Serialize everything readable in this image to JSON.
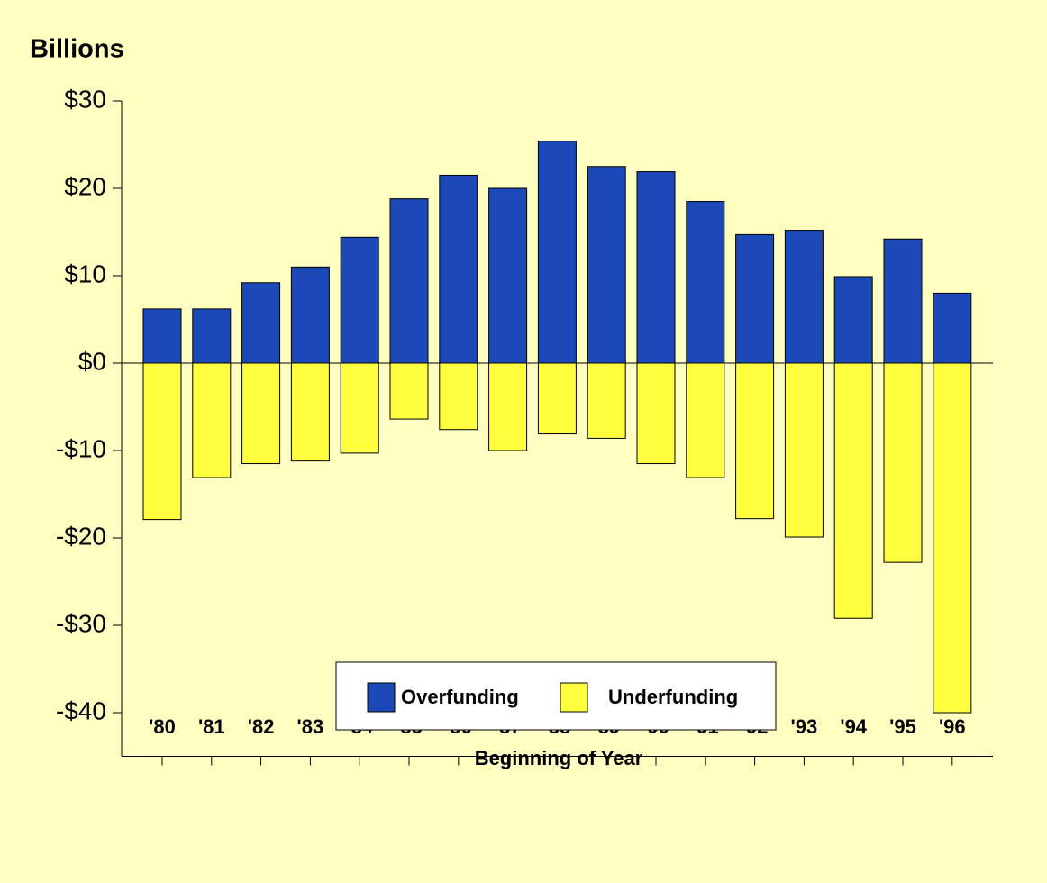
{
  "chart_data": {
    "type": "bar",
    "title": "Billions",
    "x_label": "Beginning of Year",
    "categories": [
      "'80",
      "'81",
      "'82",
      "'83",
      "'84",
      "'85",
      "'86",
      "'87",
      "'88",
      "'89",
      "'90",
      "'91",
      "'92",
      "'93",
      "'94",
      "'95",
      "'96"
    ],
    "series": [
      {
        "name": "Overfunding",
        "color": "#1c48b8",
        "values": [
          6.2,
          6.2,
          9.2,
          11.0,
          14.4,
          18.8,
          21.5,
          20.0,
          25.4,
          22.5,
          21.9,
          18.5,
          14.7,
          15.2,
          9.9,
          14.2,
          8.0
        ]
      },
      {
        "name": "Underfunding",
        "color": "#ffff40",
        "values": [
          -17.9,
          -13.1,
          -11.5,
          -11.2,
          -10.3,
          -6.4,
          -7.6,
          -10.0,
          -8.1,
          -8.6,
          -11.5,
          -13.1,
          -17.8,
          -19.9,
          -29.2,
          -22.8,
          -40.0
        ]
      }
    ],
    "ylim": [
      -45,
      30
    ],
    "yticks": [
      {
        "value": -40,
        "label": "-$40"
      },
      {
        "value": -30,
        "label": "-$30"
      },
      {
        "value": -20,
        "label": "-$20"
      },
      {
        "value": -10,
        "label": "-$10"
      },
      {
        "value": 0,
        "label": "$0"
      },
      {
        "value": 10,
        "label": "$10"
      },
      {
        "value": 20,
        "label": "$20"
      },
      {
        "value": 30,
        "label": "$30"
      }
    ],
    "legend": "bottom-center"
  }
}
